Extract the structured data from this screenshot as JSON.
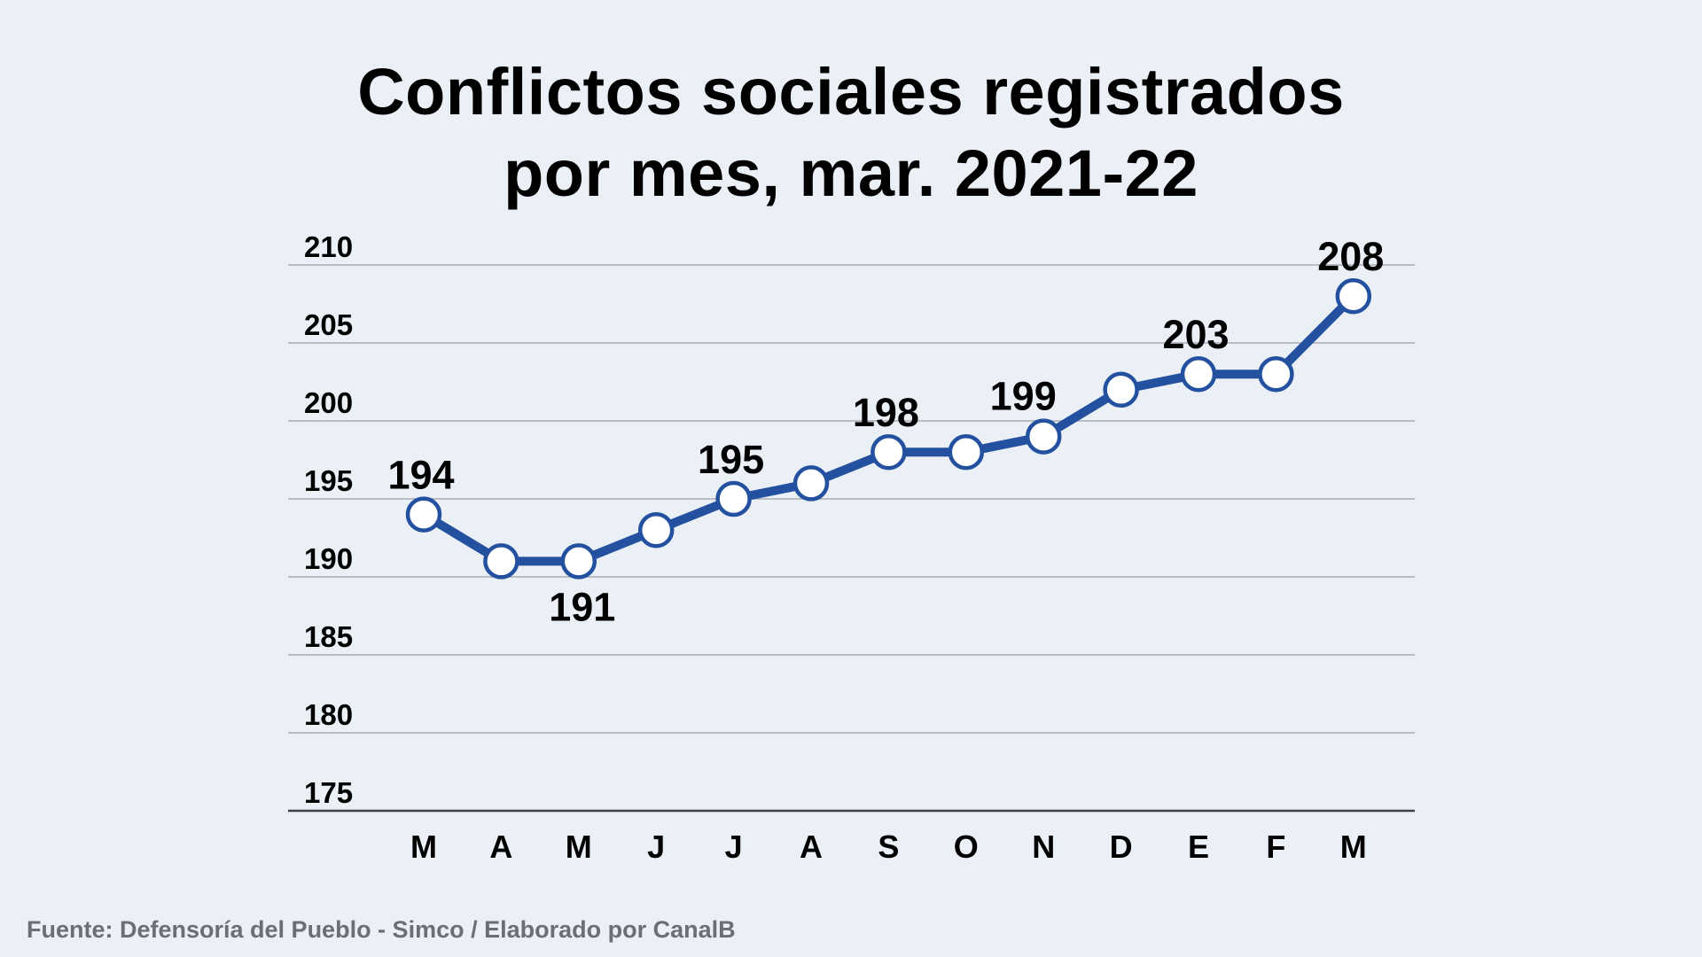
{
  "chart_data": {
    "type": "line",
    "title": "Conflictos sociales registrados por mes, mar. 2021-22",
    "title_lines": [
      "Conflictos sociales registrados",
      "por mes, mar. 2021-22"
    ],
    "xlabel": "",
    "ylabel": "",
    "categories": [
      "M",
      "A",
      "M",
      "J",
      "J",
      "A",
      "S",
      "O",
      "N",
      "D",
      "E",
      "F",
      "M"
    ],
    "series": [
      {
        "name": "Conflictos sociales",
        "values": [
          194,
          191,
          191,
          193,
          195,
          196,
          198,
          198,
          199,
          202,
          203,
          203,
          208
        ],
        "color": "#2351a0"
      }
    ],
    "data_labels": [
      {
        "index": 0,
        "text": "194",
        "position": "above"
      },
      {
        "index": 2,
        "text": "191",
        "position": "below"
      },
      {
        "index": 4,
        "text": "195",
        "position": "above"
      },
      {
        "index": 6,
        "text": "198",
        "position": "above"
      },
      {
        "index": 8,
        "text": "199",
        "position": "above-left"
      },
      {
        "index": 10,
        "text": "203",
        "position": "above"
      },
      {
        "index": 12,
        "text": "208",
        "position": "above"
      }
    ],
    "yticks": [
      175,
      180,
      185,
      190,
      195,
      200,
      205,
      210
    ],
    "ytick_labels": [
      "175",
      "180",
      "185",
      "190",
      "195",
      "200",
      "205",
      "210"
    ],
    "ylim": [
      175,
      210
    ],
    "grid": true,
    "legend": "none"
  },
  "footer": {
    "source": "Fuente: Defensoría del Pueblo - Simco / Elaborado por CanalB"
  },
  "colors": {
    "background": "#ebf0f7",
    "line": "#2351a0",
    "marker_fill": "#ffffff",
    "gridline": "#a9adb3",
    "axis": "#3d4148",
    "text": "#000000",
    "footer_text": "#6b6e73"
  }
}
